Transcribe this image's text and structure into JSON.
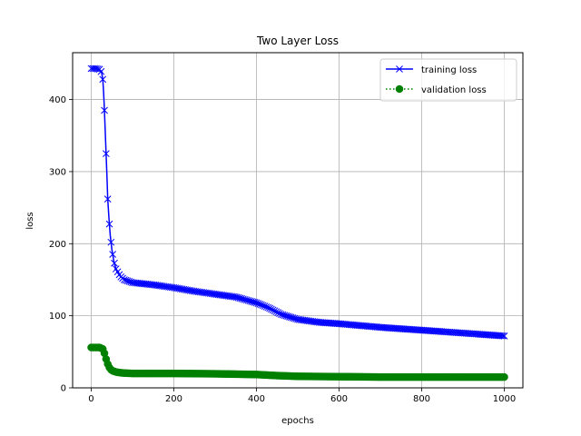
{
  "chart_data": {
    "type": "line",
    "title": "Two Layer Loss",
    "xlabel": "epochs",
    "ylabel": "loss",
    "xlim": [
      -45,
      1045
    ],
    "ylim": [
      0,
      465
    ],
    "xticks": [
      0,
      200,
      400,
      600,
      800,
      1000
    ],
    "yticks": [
      0,
      100,
      200,
      300,
      400
    ],
    "grid": true,
    "legend": "top-right",
    "series": [
      {
        "name": "training loss",
        "color": "#0000ff",
        "marker": "x",
        "line_style": "solid",
        "points": [
          [
            0,
            443
          ],
          [
            10,
            443
          ],
          [
            20,
            442
          ],
          [
            25,
            438
          ],
          [
            28,
            428
          ],
          [
            30,
            410
          ],
          [
            32,
            385
          ],
          [
            35,
            340
          ],
          [
            38,
            295
          ],
          [
            40,
            262
          ],
          [
            43,
            235
          ],
          [
            46,
            212
          ],
          [
            50,
            192
          ],
          [
            55,
            175
          ],
          [
            60,
            165
          ],
          [
            70,
            155
          ],
          [
            80,
            150
          ],
          [
            90,
            148
          ],
          [
            100,
            146
          ],
          [
            150,
            143
          ],
          [
            200,
            139
          ],
          [
            250,
            134
          ],
          [
            300,
            130
          ],
          [
            350,
            126
          ],
          [
            400,
            118
          ],
          [
            430,
            111
          ],
          [
            460,
            102
          ],
          [
            500,
            95
          ],
          [
            550,
            91
          ],
          [
            600,
            89
          ],
          [
            700,
            84
          ],
          [
            800,
            80
          ],
          [
            900,
            76
          ],
          [
            1000,
            72
          ]
        ]
      },
      {
        "name": "validation loss",
        "color": "#008000",
        "marker": "o",
        "line_style": "dotted",
        "points": [
          [
            0,
            56
          ],
          [
            10,
            56
          ],
          [
            20,
            56
          ],
          [
            28,
            54
          ],
          [
            32,
            48
          ],
          [
            36,
            40
          ],
          [
            40,
            33
          ],
          [
            45,
            27
          ],
          [
            50,
            24
          ],
          [
            60,
            22
          ],
          [
            70,
            21
          ],
          [
            80,
            20.5
          ],
          [
            100,
            20
          ],
          [
            200,
            20
          ],
          [
            300,
            19.5
          ],
          [
            350,
            19
          ],
          [
            400,
            18.5
          ],
          [
            450,
            17
          ],
          [
            500,
            16
          ],
          [
            600,
            15.5
          ],
          [
            700,
            15
          ],
          [
            800,
            15
          ],
          [
            900,
            15
          ],
          [
            1000,
            15
          ]
        ]
      }
    ]
  }
}
